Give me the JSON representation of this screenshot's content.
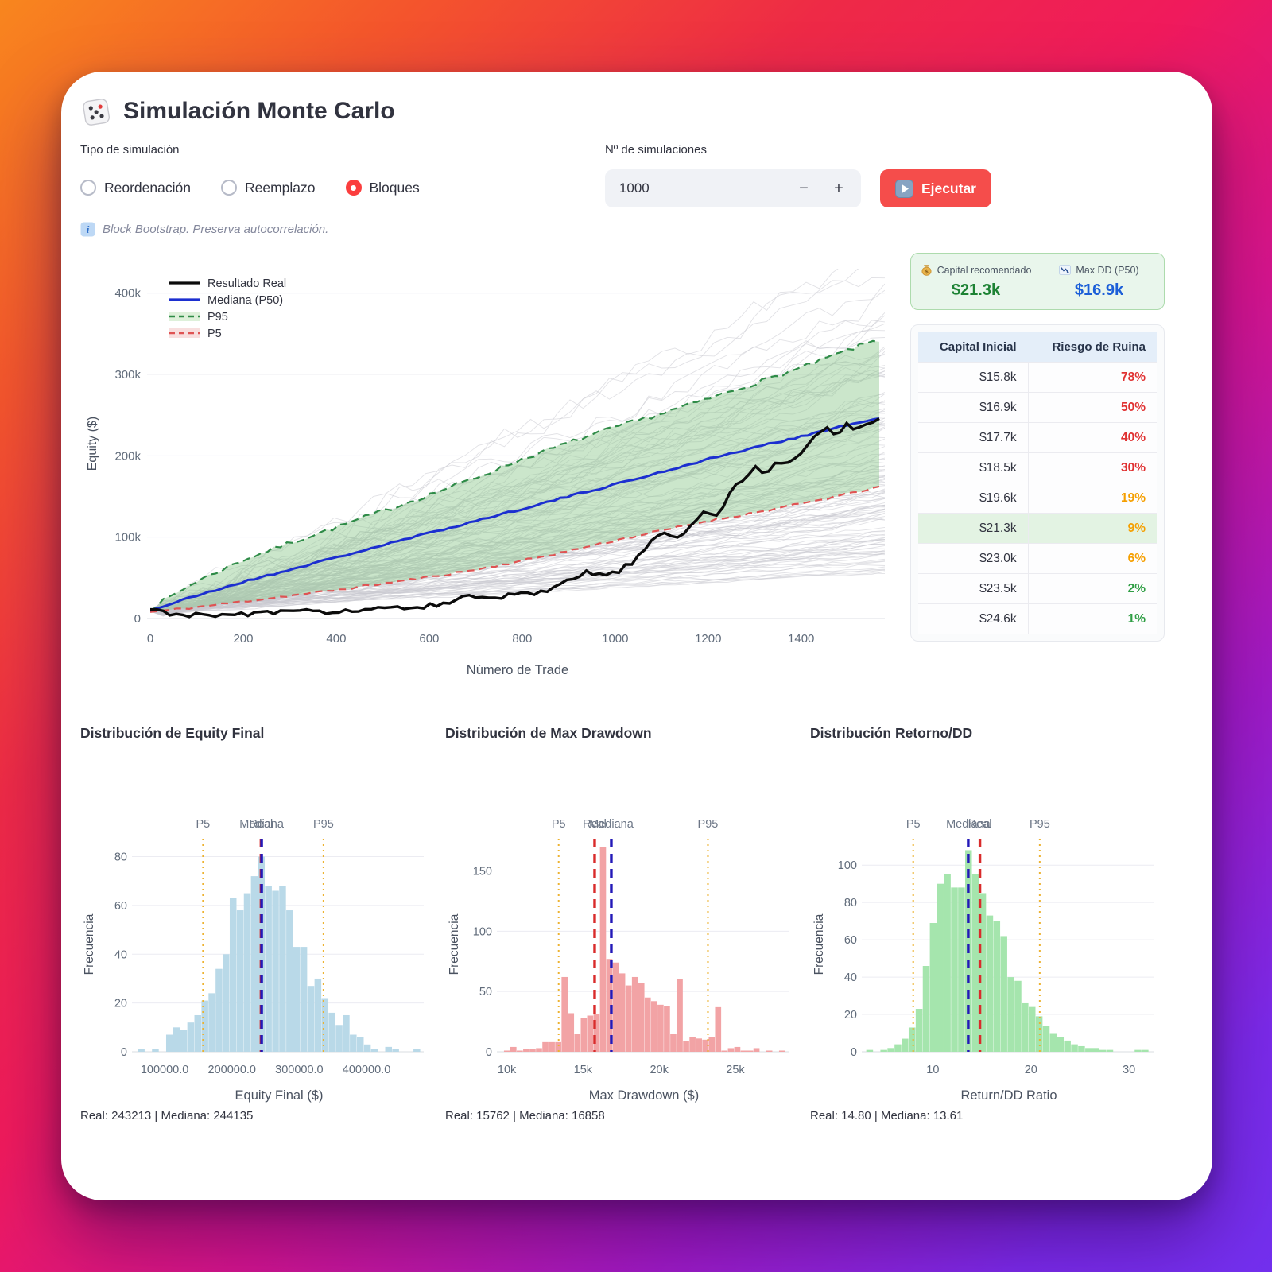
{
  "app": {
    "title": "Simulación Monte Carlo"
  },
  "controls": {
    "sim_type_label": "Tipo de simulación",
    "sim_type_options": [
      {
        "label": "Reordenación",
        "selected": false
      },
      {
        "label": "Reemplazo",
        "selected": false
      },
      {
        "label": "Bloques",
        "selected": true
      }
    ],
    "n_sims_label": "Nº de simulaciones",
    "n_sims_value": "1000",
    "minus_label": "−",
    "plus_label": "+",
    "run_label": "Ejecutar",
    "info_text": "Block Bootstrap. Preserva autocorrelación."
  },
  "summary": {
    "capital_label": "Capital recomendado",
    "capital_value": "$21.3k",
    "maxdd_label": "Max DD (P50)",
    "maxdd_value": "$16.9k"
  },
  "risk_table": {
    "headers": [
      "Capital Inicial",
      "Riesgo de Ruina"
    ],
    "rows": [
      {
        "capital": "$15.8k",
        "risk": "78%",
        "risk_color": "#e03131",
        "highlight": false
      },
      {
        "capital": "$16.9k",
        "risk": "50%",
        "risk_color": "#e03131",
        "highlight": false
      },
      {
        "capital": "$17.7k",
        "risk": "40%",
        "risk_color": "#e03131",
        "highlight": false
      },
      {
        "capital": "$18.5k",
        "risk": "30%",
        "risk_color": "#e03131",
        "highlight": false
      },
      {
        "capital": "$19.6k",
        "risk": "19%",
        "risk_color": "#f59f00",
        "highlight": false
      },
      {
        "capital": "$21.3k",
        "risk": "9%",
        "risk_color": "#f59f00",
        "highlight": true
      },
      {
        "capital": "$23.0k",
        "risk": "6%",
        "risk_color": "#f59f00",
        "highlight": false
      },
      {
        "capital": "$23.5k",
        "risk": "2%",
        "risk_color": "#2f9e44",
        "highlight": false
      },
      {
        "capital": "$24.6k",
        "risk": "1%",
        "risk_color": "#2f9e44",
        "highlight": false
      }
    ]
  },
  "stats": {
    "equity": "Real: 243213 | Mediana: 244135",
    "drawdown": "Real: 15762 | Mediana: 16858",
    "ratio": "Real: 14.80 | Mediana: 13.61"
  },
  "hist_titles": {
    "equity": "Distribución de Equity Final",
    "drawdown": "Distribución de Max Drawdown",
    "ratio": "Distribución Retorno/DD"
  },
  "chart_data": [
    {
      "type": "line",
      "name": "equity-fan-chart",
      "xlabel": "Número de Trade",
      "ylabel": "Equity ($)",
      "xlim": [
        0,
        1580
      ],
      "ylim": [
        0,
        430000
      ],
      "xticks": [
        0,
        200,
        400,
        600,
        800,
        1000,
        1200,
        1400
      ],
      "yticks": [
        {
          "v": 0,
          "l": "0"
        },
        {
          "v": 100000,
          "l": "100k"
        },
        {
          "v": 200000,
          "l": "200k"
        },
        {
          "v": 300000,
          "l": "300k"
        },
        {
          "v": 400000,
          "l": "400k"
        }
      ],
      "legend": [
        "Resultado Real",
        "Mediana (P50)",
        "P95",
        "P5"
      ],
      "band_fill": "#8cc88c",
      "n_display_paths": 130,
      "series": [
        {
          "name": "P95",
          "color": "#2e8b47",
          "style": "dashed",
          "points": [
            [
              0,
              12000
            ],
            [
              100,
              46000
            ],
            [
              200,
              72000
            ],
            [
              300,
              93000
            ],
            [
              400,
              112000
            ],
            [
              500,
              132000
            ],
            [
              600,
              152000
            ],
            [
              700,
              173000
            ],
            [
              800,
              196000
            ],
            [
              900,
              216000
            ],
            [
              1000,
              235000
            ],
            [
              1100,
              252000
            ],
            [
              1200,
              270000
            ],
            [
              1300,
              289000
            ],
            [
              1400,
              308000
            ],
            [
              1500,
              330000
            ],
            [
              1560,
              342000
            ]
          ]
        },
        {
          "name": "P5",
          "color": "#df5353",
          "style": "dashed",
          "points": [
            [
              0,
              8000
            ],
            [
              100,
              14000
            ],
            [
              200,
              21000
            ],
            [
              300,
              28000
            ],
            [
              400,
              35000
            ],
            [
              500,
              43000
            ],
            [
              600,
              51000
            ],
            [
              700,
              60000
            ],
            [
              800,
              71000
            ],
            [
              900,
              83000
            ],
            [
              1000,
              96000
            ],
            [
              1100,
              108000
            ],
            [
              1200,
              120000
            ],
            [
              1300,
              130000
            ],
            [
              1400,
              141000
            ],
            [
              1500,
              153000
            ],
            [
              1560,
              161000
            ]
          ]
        },
        {
          "name": "Mediana (P50)",
          "color": "#1c2fd0",
          "style": "solid",
          "points": [
            [
              0,
              10000
            ],
            [
              100,
              28000
            ],
            [
              200,
              45000
            ],
            [
              300,
              60000
            ],
            [
              400,
              75000
            ],
            [
              500,
              90000
            ],
            [
              600,
              105000
            ],
            [
              700,
              120000
            ],
            [
              800,
              135000
            ],
            [
              900,
              150000
            ],
            [
              1000,
              165000
            ],
            [
              1100,
              180000
            ],
            [
              1200,
              196000
            ],
            [
              1300,
              210000
            ],
            [
              1400,
              224000
            ],
            [
              1500,
              238000
            ],
            [
              1560,
              245000
            ]
          ]
        },
        {
          "name": "Resultado Real",
          "color": "#0b0b0b",
          "style": "solid",
          "points": [
            [
              0,
              10000
            ],
            [
              40,
              7000
            ],
            [
              80,
              5000
            ],
            [
              120,
              3000
            ],
            [
              160,
              4000
            ],
            [
              200,
              6000
            ],
            [
              260,
              7000
            ],
            [
              320,
              8000
            ],
            [
              380,
              9000
            ],
            [
              440,
              10000
            ],
            [
              500,
              11000
            ],
            [
              550,
              13000
            ],
            [
              600,
              16000
            ],
            [
              640,
              21000
            ],
            [
              680,
              26000
            ],
            [
              710,
              24000
            ],
            [
              740,
              26000
            ],
            [
              780,
              28000
            ],
            [
              820,
              30000
            ],
            [
              860,
              34000
            ],
            [
              900,
              46000
            ],
            [
              940,
              57000
            ],
            [
              970,
              53000
            ],
            [
              1000,
              56000
            ],
            [
              1040,
              70000
            ],
            [
              1070,
              88000
            ],
            [
              1100,
              107000
            ],
            [
              1130,
              99000
            ],
            [
              1160,
              112000
            ],
            [
              1190,
              131000
            ],
            [
              1220,
              126000
            ],
            [
              1250,
              158000
            ],
            [
              1280,
              172000
            ],
            [
              1300,
              186000
            ],
            [
              1320,
              177000
            ],
            [
              1350,
              196000
            ],
            [
              1370,
              188000
            ],
            [
              1400,
              206000
            ],
            [
              1430,
              224000
            ],
            [
              1455,
              236000
            ],
            [
              1475,
              227000
            ],
            [
              1500,
              240000
            ],
            [
              1515,
              231000
            ],
            [
              1535,
              238000
            ],
            [
              1560,
              243000
            ]
          ]
        }
      ]
    },
    {
      "type": "bar",
      "name": "equity-final-histogram",
      "xlabel": "Equity Final ($)",
      "ylabel": "Frecuencia",
      "bar_color": "#b9d9e8",
      "bin_start": 60000,
      "bin_width": 10500,
      "values": [
        1,
        0,
        1,
        0,
        7,
        10,
        9,
        12,
        15,
        21,
        24,
        34,
        40,
        63,
        58,
        65,
        72,
        80,
        68,
        66,
        68,
        58,
        43,
        43,
        27,
        30,
        22,
        16,
        11,
        15,
        7,
        6,
        3,
        1,
        0,
        2,
        1,
        0,
        0,
        1
      ],
      "xlim": [
        55000,
        485000
      ],
      "ylim": [
        0,
        88
      ],
      "yticks": [
        0,
        20,
        40,
        60,
        80
      ],
      "xticks": [
        {
          "v": 100000,
          "l": "100000.0"
        },
        {
          "v": 200000,
          "l": "200000.0"
        },
        {
          "v": 300000,
          "l": "300000.0"
        },
        {
          "v": 400000,
          "l": "400000.0"
        }
      ],
      "vlines": [
        {
          "label": "P5",
          "value": 157000,
          "color": "#edb230",
          "style": "dotted"
        },
        {
          "label": "Real",
          "value": 243213,
          "color": "#d92b2b",
          "style": "dashed"
        },
        {
          "label": "Mediana",
          "value": 244135,
          "color": "#2319b8",
          "style": "dashed"
        },
        {
          "label": "P95",
          "value": 336000,
          "color": "#edb230",
          "style": "dotted"
        }
      ]
    },
    {
      "type": "bar",
      "name": "max-drawdown-histogram",
      "xlabel": "Max Drawdown ($)",
      "ylabel": "Frecuencia",
      "bar_color": "#f2a3a5",
      "bin_start": 9800,
      "bin_width": 420,
      "values": [
        1,
        4,
        1,
        2,
        2,
        3,
        8,
        8,
        8,
        62,
        32,
        15,
        28,
        30,
        31,
        170,
        77,
        74,
        65,
        55,
        62,
        57,
        45,
        42,
        39,
        38,
        15,
        60,
        9,
        12,
        11,
        10,
        12,
        37,
        1,
        3,
        4,
        1,
        1,
        3,
        0,
        1,
        0,
        1
      ],
      "xlim": [
        9500,
        28500
      ],
      "ylim": [
        0,
        178
      ],
      "yticks": [
        0,
        50,
        100,
        150
      ],
      "xticks": [
        {
          "v": 10000,
          "l": "10k"
        },
        {
          "v": 15000,
          "l": "15k"
        },
        {
          "v": 20000,
          "l": "20k"
        },
        {
          "v": 25000,
          "l": "25k"
        }
      ],
      "vlines": [
        {
          "label": "P5",
          "value": 13400,
          "color": "#edb230",
          "style": "dotted"
        },
        {
          "label": "Real",
          "value": 15762,
          "color": "#d92b2b",
          "style": "dashed"
        },
        {
          "label": "Mediana",
          "value": 16858,
          "color": "#2319b8",
          "style": "dashed"
        },
        {
          "label": "P95",
          "value": 23200,
          "color": "#edb230",
          "style": "dotted"
        }
      ]
    },
    {
      "type": "bar",
      "name": "return-dd-histogram",
      "xlabel": "Return/DD Ratio",
      "ylabel": "Frecuencia",
      "bar_color": "#a5e5ad",
      "bin_start": 3.2,
      "bin_width": 0.72,
      "values": [
        1,
        0,
        1,
        2,
        4,
        7,
        13,
        23,
        46,
        69,
        90,
        95,
        88,
        88,
        108,
        95,
        85,
        73,
        70,
        62,
        40,
        38,
        26,
        24,
        19,
        14,
        10,
        8,
        6,
        4,
        3,
        2,
        2,
        1,
        1,
        0,
        0,
        0,
        1,
        1
      ],
      "xlim": [
        3,
        32.5
      ],
      "ylim": [
        0,
        115
      ],
      "yticks": [
        0,
        20,
        40,
        60,
        80,
        100
      ],
      "xticks": [
        {
          "v": 10,
          "l": "10"
        },
        {
          "v": 20,
          "l": "20"
        },
        {
          "v": 30,
          "l": "30"
        }
      ],
      "vlines": [
        {
          "label": "P5",
          "value": 8.0,
          "color": "#edb230",
          "style": "dotted"
        },
        {
          "label": "Mediana",
          "value": 13.61,
          "color": "#2319b8",
          "style": "dashed"
        },
        {
          "label": "Real",
          "value": 14.8,
          "color": "#d92b2b",
          "style": "dashed"
        },
        {
          "label": "P95",
          "value": 20.9,
          "color": "#edb230",
          "style": "dotted"
        }
      ]
    }
  ]
}
